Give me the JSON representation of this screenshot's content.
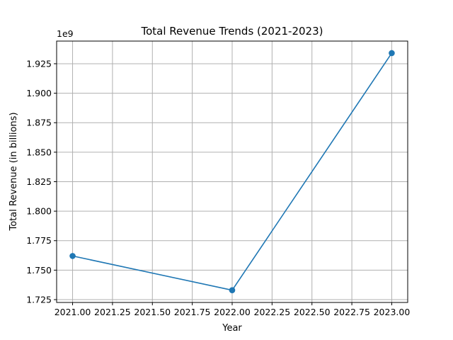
{
  "chart_data": {
    "type": "line",
    "title": "Total Revenue Trends (2021-2023)",
    "xlabel": "Year",
    "ylabel": "Total Revenue (in billions)",
    "offset_label": "1e9",
    "grid": true,
    "xlim": [
      2020.9,
      2023.1
    ],
    "ylim": [
      1.7226,
      1.9442
    ],
    "x_ticks": [
      2021.0,
      2021.25,
      2021.5,
      2021.75,
      2022.0,
      2022.25,
      2022.5,
      2022.75,
      2023.0
    ],
    "x_tick_labels": [
      "2021.00",
      "2021.25",
      "2021.50",
      "2021.75",
      "2022.00",
      "2022.25",
      "2022.50",
      "2022.75",
      "2023.00"
    ],
    "y_ticks": [
      1.725,
      1.75,
      1.775,
      1.8,
      1.825,
      1.85,
      1.875,
      1.9,
      1.925
    ],
    "y_tick_labels": [
      "1.725",
      "1.750",
      "1.775",
      "1.800",
      "1.825",
      "1.850",
      "1.875",
      "1.900",
      "1.925"
    ],
    "series": [
      {
        "color": "#1f77b4",
        "marker": "circle",
        "x": [
          2021,
          2022,
          2023
        ],
        "y": [
          1.762,
          1.733,
          1.934
        ]
      }
    ]
  }
}
